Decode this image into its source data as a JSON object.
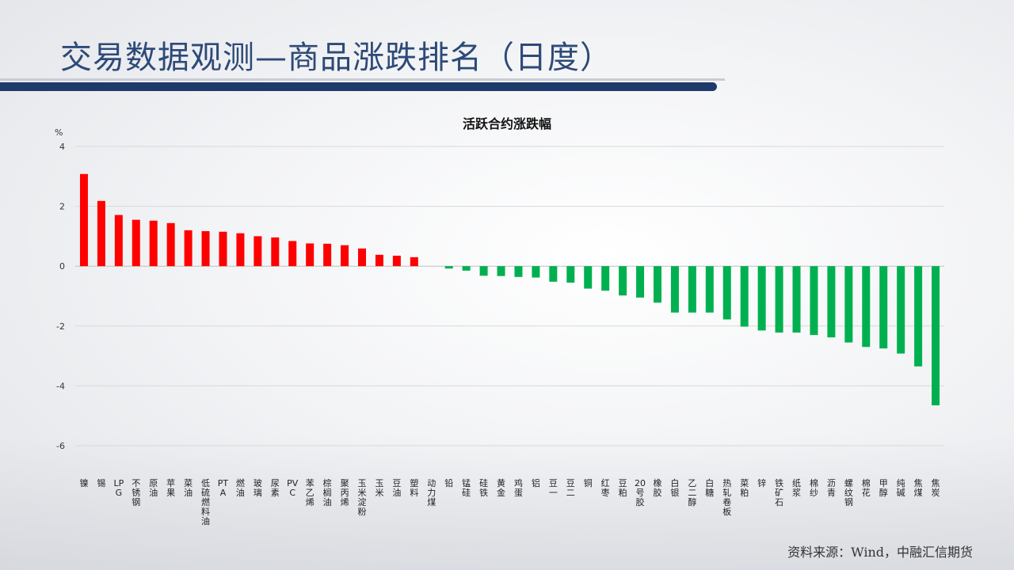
{
  "header": {
    "title": "交易数据观测—商品涨跌排名（日度）"
  },
  "footer": {
    "source": "资料来源：Wind，中融汇信期货"
  },
  "colors": {
    "up": "#ff0000",
    "down": "#00b050",
    "title": "#2d4a78",
    "rule": "#1e3a6b"
  },
  "chart_data": {
    "type": "bar",
    "title": "活跃合约涨跌幅",
    "ylabel": "%",
    "ylim": [
      -6,
      4
    ],
    "yticks": [
      -6,
      -4,
      -2,
      0,
      2,
      4
    ],
    "grid": true,
    "categories": [
      "镍",
      "锡",
      "LPG",
      "不锈钢",
      "原油",
      "苹果",
      "菜油",
      "低硫燃料油",
      "PTA",
      "燃油",
      "玻璃",
      "尿素",
      "PVC",
      "苯乙烯",
      "棕榈油",
      "聚丙烯",
      "玉米淀粉",
      "玉米",
      "豆油",
      "塑料",
      "动力煤",
      "铅",
      "锰硅",
      "硅铁",
      "黄金",
      "鸡蛋",
      "铝",
      "豆一",
      "豆二",
      "铜",
      "红枣",
      "豆粕",
      "20号胶",
      "橡胶",
      "白银",
      "乙二醇",
      "白糖",
      "热轧卷板",
      "菜粕",
      "锌",
      "铁矿石",
      "纸浆",
      "棉纱",
      "沥青",
      "螺纹钢",
      "棉花",
      "甲醇",
      "纯碱",
      "焦煤",
      "焦炭"
    ],
    "values": [
      3.08,
      2.18,
      1.71,
      1.55,
      1.52,
      1.44,
      1.2,
      1.17,
      1.15,
      1.1,
      1.0,
      0.96,
      0.84,
      0.76,
      0.75,
      0.7,
      0.59,
      0.38,
      0.35,
      0.3,
      0.0,
      -0.08,
      -0.15,
      -0.32,
      -0.33,
      -0.36,
      -0.38,
      -0.52,
      -0.55,
      -0.75,
      -0.82,
      -0.98,
      -1.05,
      -1.22,
      -1.55,
      -1.55,
      -1.55,
      -1.78,
      -2.02,
      -2.15,
      -2.22,
      -2.22,
      -2.3,
      -2.38,
      -2.55,
      -2.7,
      -2.75,
      -2.92,
      -3.35,
      -4.65
    ]
  }
}
